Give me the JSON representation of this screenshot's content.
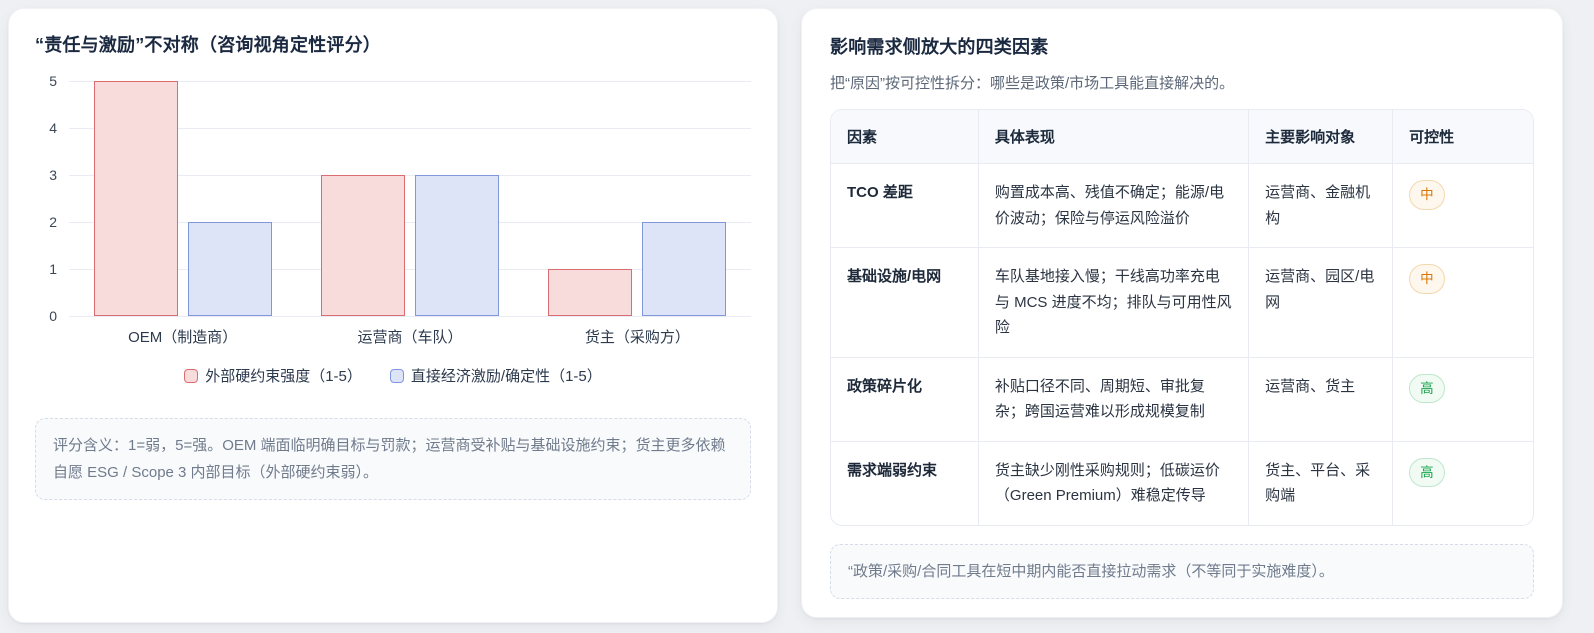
{
  "left_panel": {
    "title": "“责任与激励”不对称（咨询视角定性评分）",
    "note": "评分含义：1=弱，5=强。OEM 端面临明确目标与罚款；运营商受补贴与基础设施约束；货主更多依赖自愿 ESG / Scope 3 内部目标（外部硬约束弱）。"
  },
  "chart_data": {
    "type": "bar",
    "title": "“责任与激励”不对称（咨询视角定性评分）",
    "categories": [
      "OEM（制造商）",
      "运营商（车队）",
      "货主（采购方）"
    ],
    "series": [
      {
        "name": "外部硬约束强度（1-5）",
        "values": [
          5,
          3,
          1
        ],
        "fill": "#f8dbdb",
        "border": "#db6d72"
      },
      {
        "name": "直接经济激励/确定性（1-5）",
        "values": [
          2,
          3,
          2
        ],
        "fill": "#dde4f8",
        "border": "#8197dc"
      }
    ],
    "xlabel": "",
    "ylabel": "",
    "ylim": [
      0,
      5
    ],
    "yticks": [
      0,
      1,
      2,
      3,
      4,
      5
    ],
    "grid": true,
    "legend_position": "bottom"
  },
  "right_panel": {
    "title": "影响需求侧放大的四类因素",
    "subtitle": "把“原因”按可控性拆分：哪些是政策/市场工具能直接解决的。",
    "table": {
      "headers": [
        "因素",
        "具体表现",
        "主要影响对象",
        "可控性"
      ],
      "rows": [
        {
          "factor": "TCO 差距",
          "detail": "购置成本高、残值不确定；能源/电价波动；保险与停运风险溢价",
          "affected": "运营商、金融机构",
          "controllability": "中",
          "level": "medium"
        },
        {
          "factor": "基础设施/电网",
          "detail": "车队基地接入慢；干线高功率充电与 MCS 进度不均；排队与可用性风险",
          "affected": "运营商、园区/电网",
          "controllability": "中",
          "level": "medium"
        },
        {
          "factor": "政策碎片化",
          "detail": "补贴口径不同、周期短、审批复杂；跨国运营难以形成规模复制",
          "affected": "运营商、货主",
          "controllability": "高",
          "level": "high"
        },
        {
          "factor": "需求端弱约束",
          "detail": "货主缺少刚性采购规则；低碳运价（Green Premium）难稳定传导",
          "affected": "货主、平台、采购端",
          "controllability": "高",
          "level": "high"
        }
      ]
    },
    "footnote": "“政策/采购/合同工具在短中期内能否直接拉动需求（不等同于实施难度）。"
  },
  "colors": {
    "page_bg": "#eef0f4",
    "card_bg": "#ffffff",
    "bar1_fill": "#f8dbdb",
    "bar1_border": "#db6d72",
    "bar2_fill": "#dde4f8",
    "bar2_border": "#8197dc",
    "badge_medium_text": "#d97706",
    "badge_medium_bg": "#fdf7ee",
    "badge_medium_border": "#f3d8ad",
    "badge_high_text": "#17a34a",
    "badge_high_bg": "#f1fbf4",
    "badge_high_border": "#bfe7cc"
  }
}
